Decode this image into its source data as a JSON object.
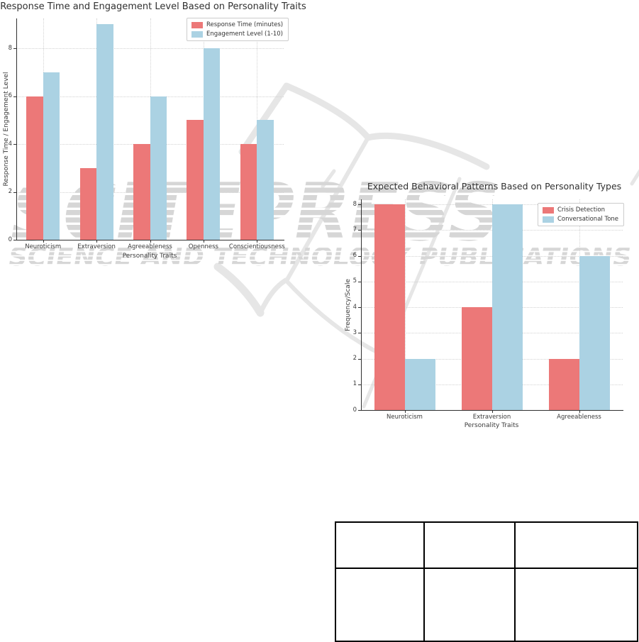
{
  "watermark": {
    "brand": "SCITEPRESS",
    "tagline": "SCIENCE AND TECHNOLOGY PUBLICATIONS",
    "color": "#d6d6d6"
  },
  "chart_data": [
    {
      "type": "bar",
      "title": "Response Time and Engagement Level Based on Personality Traits",
      "xlabel": "Personality Traits",
      "ylabel": "Response Time / Engagement Level",
      "categories": [
        "Neuroticism",
        "Extraversion",
        "Agreeableness",
        "Openness",
        "Conscientiousness"
      ],
      "series": [
        {
          "name": "Response Time (minutes)",
          "color": "#ec7878",
          "values": [
            6,
            3,
            4,
            5,
            4
          ]
        },
        {
          "name": "Engagement Level (1-10)",
          "color": "#abd2e3",
          "values": [
            7,
            9,
            6,
            8,
            5
          ]
        }
      ],
      "yticks": [
        0,
        2,
        4,
        6,
        8
      ],
      "ylim": [
        0,
        9.25
      ],
      "grid": true,
      "legend_position": "upper right"
    },
    {
      "type": "bar",
      "title": "Expected Behavioral Patterns Based on Personality Types",
      "xlabel": "Personality Traits",
      "ylabel": "Frequency/Scale",
      "categories": [
        "Neuroticism",
        "Extraversion",
        "Agreeableness"
      ],
      "series": [
        {
          "name": "Crisis Detection",
          "color": "#ec7878",
          "values": [
            8,
            4,
            2
          ]
        },
        {
          "name": "Conversational Tone",
          "color": "#abd2e3",
          "values": [
            2,
            8,
            6
          ]
        }
      ],
      "yticks": [
        0,
        1,
        2,
        3,
        4,
        5,
        6,
        7,
        8
      ],
      "ylim": [
        0,
        8.2
      ],
      "grid": true,
      "legend_position": "upper right"
    }
  ],
  "table": {
    "rows": 2,
    "cols": 3,
    "cells": [
      [
        "",
        "",
        ""
      ],
      [
        "",
        "",
        ""
      ]
    ]
  }
}
